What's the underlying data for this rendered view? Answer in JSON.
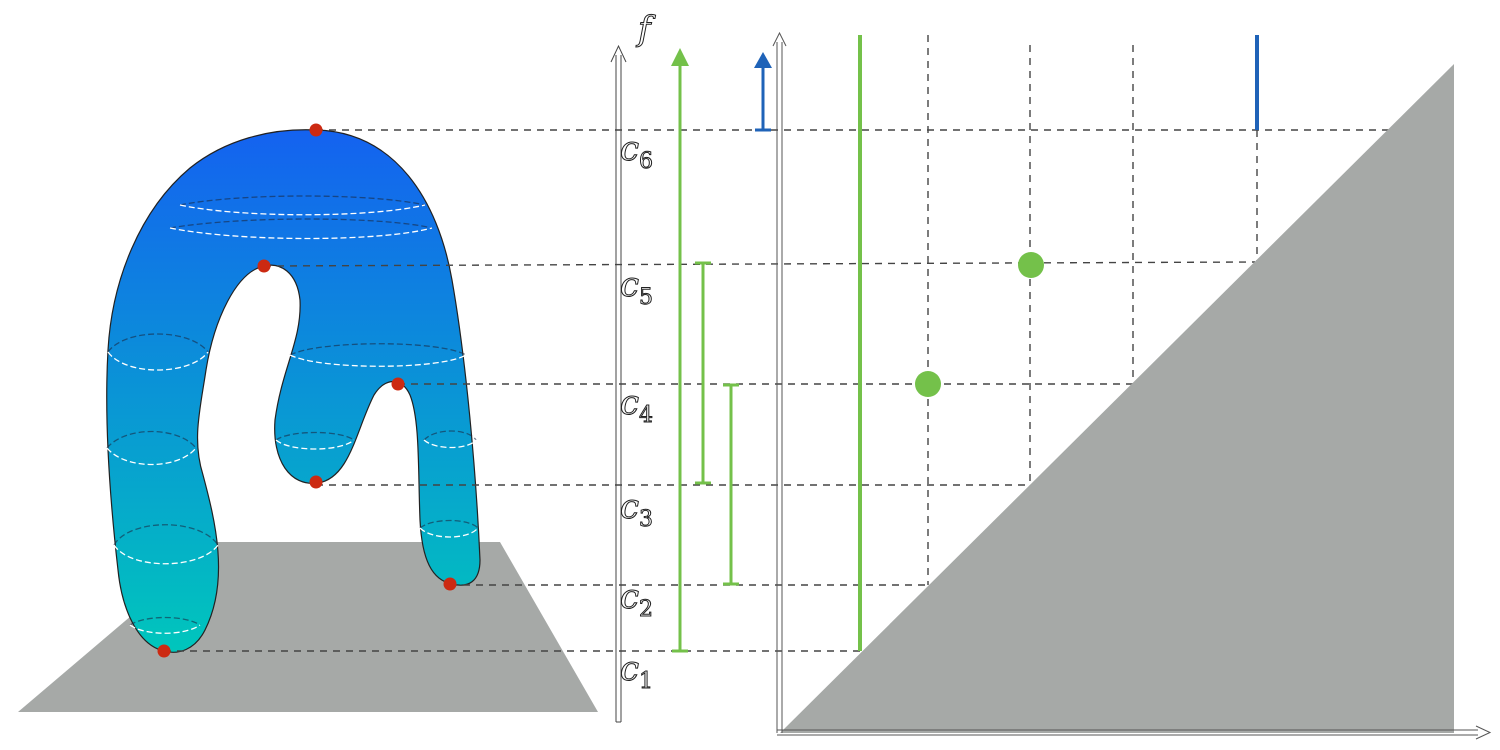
{
  "colors": {
    "plane": "#a6a9a7",
    "surface_top": "#1462f0",
    "surface_bottom": "#00c6bc",
    "critical_point": "#cc2a12",
    "h0": "#74c14a",
    "h1": "#1f63b8",
    "diagonal_region": "#a6a9a7"
  },
  "axis": {
    "label": "f"
  },
  "critical_values": [
    {
      "id": "c1",
      "letter": "c",
      "index": "1"
    },
    {
      "id": "c2",
      "letter": "c",
      "index": "2"
    },
    {
      "id": "c3",
      "letter": "c",
      "index": "3"
    },
    {
      "id": "c4",
      "letter": "c",
      "index": "4"
    },
    {
      "id": "c5",
      "letter": "c",
      "index": "5"
    },
    {
      "id": "c6",
      "letter": "c",
      "index": "6"
    }
  ],
  "barcode": [
    {
      "dimension": 0,
      "birth": "c1",
      "death": "infinity"
    },
    {
      "dimension": 0,
      "birth": "c3",
      "death": "c5"
    },
    {
      "dimension": 0,
      "birth": "c2",
      "death": "c4"
    },
    {
      "dimension": 1,
      "birth": "c6",
      "death": "infinity"
    }
  ],
  "diagram_points": [
    {
      "dimension": 0,
      "birth": "c2",
      "death": "c4"
    },
    {
      "dimension": 0,
      "birth": "c3",
      "death": "c5"
    }
  ],
  "diagram_essential": [
    {
      "dimension": 0,
      "birth": "c1"
    },
    {
      "dimension": 1,
      "birth": "c6"
    }
  ]
}
